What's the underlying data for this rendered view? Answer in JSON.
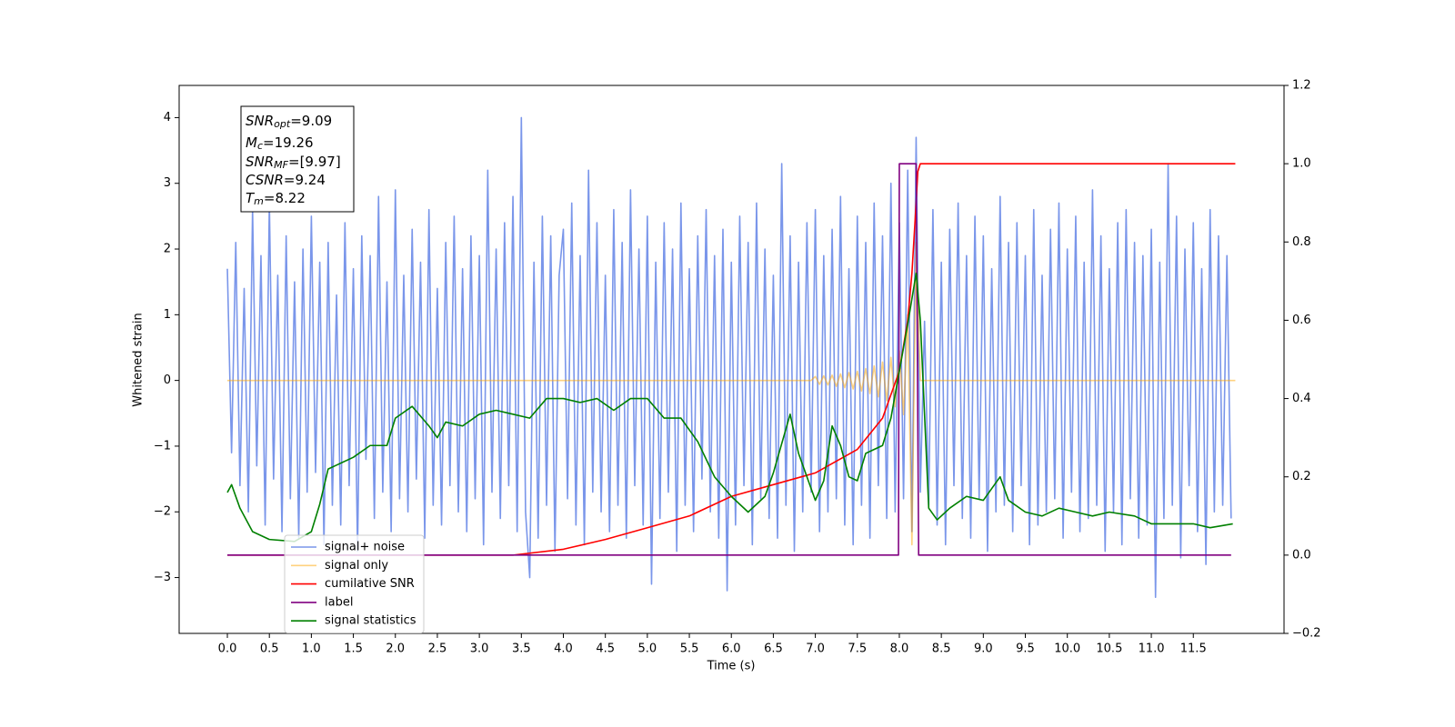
{
  "chart_data": {
    "type": "line",
    "x_label": "Time (s)",
    "y_label": "Whitened strain",
    "xlim": [
      -0.574,
      12.58
    ],
    "ylim": [
      -3.85,
      4.49
    ],
    "y2lim": [
      -0.2,
      1.2
    ],
    "xticks": [
      {
        "value": 0,
        "label": "0.0"
      },
      0.5,
      {
        "value": 1,
        "label": "1.0"
      },
      1.5,
      {
        "value": 2,
        "label": "2.0"
      },
      2.5,
      {
        "value": 3,
        "label": "3.0"
      },
      3.5,
      {
        "value": 4,
        "label": "4.0"
      },
      4.5,
      {
        "value": 5,
        "label": "5.0"
      },
      5.5,
      {
        "value": 6,
        "label": "6.0"
      },
      6.5,
      {
        "value": 7,
        "label": "7.0"
      },
      7.5,
      {
        "value": 8,
        "label": "8.0"
      },
      8.5,
      {
        "value": 9,
        "label": "9.0"
      },
      9.5,
      {
        "value": 10,
        "label": "10.0"
      },
      10.5,
      {
        "value": 11,
        "label": "11.0"
      },
      11.5
    ],
    "yticks": [
      {
        "value": -3,
        "label": "−3"
      },
      {
        "value": -2,
        "label": "−2"
      },
      {
        "value": -1,
        "label": "−1"
      },
      0,
      1,
      2,
      3,
      4
    ],
    "y2ticks": [
      {
        "value": -0.2,
        "label": "−0.2"
      },
      {
        "value": 0,
        "label": "0.0"
      },
      0.2,
      0.4,
      0.6,
      0.8,
      {
        "value": 1,
        "label": "1.0"
      },
      1.2
    ],
    "legend": "lower left",
    "annotation": [
      {
        "symbol": "SNR",
        "subscript": "opt",
        "text": "=9.09"
      },
      {
        "symbol": "M",
        "subscript": "c",
        "text": "=19.26"
      },
      {
        "symbol": "SNR",
        "subscript": "MF",
        "text": "=[9.97]"
      },
      {
        "symbol": "CSNR",
        "subscript": "",
        "text": "=9.24"
      },
      {
        "symbol": "T",
        "subscript": "m",
        "text": "=8.22"
      }
    ],
    "series": [
      {
        "name": "signal+ noise",
        "color": "#4169e1",
        "alpha": 0.7,
        "axis": "y",
        "x": [
          0,
          0.05,
          0.1,
          0.15,
          0.2,
          0.25,
          0.3,
          0.35,
          0.4,
          0.45,
          0.5,
          0.55,
          0.6,
          0.65,
          0.7,
          0.75,
          0.8,
          0.85,
          0.9,
          0.95,
          1,
          1.05,
          1.1,
          1.15,
          1.2,
          1.25,
          1.3,
          1.35,
          1.4,
          1.45,
          1.5,
          1.55,
          1.6,
          1.65,
          1.7,
          1.75,
          1.8,
          1.85,
          1.9,
          1.95,
          2,
          2.05,
          2.1,
          2.15,
          2.2,
          2.25,
          2.3,
          2.35,
          2.4,
          2.45,
          2.5,
          2.55,
          2.6,
          2.65,
          2.7,
          2.75,
          2.8,
          2.85,
          2.9,
          2.95,
          3,
          3.05,
          3.1,
          3.15,
          3.2,
          3.25,
          3.3,
          3.35,
          3.4,
          3.45,
          3.5,
          3.55,
          3.6,
          3.65,
          3.7,
          3.75,
          3.8,
          3.85,
          3.9,
          3.95,
          4,
          4.05,
          4.1,
          4.15,
          4.2,
          4.25,
          4.3,
          4.35,
          4.4,
          4.45,
          4.5,
          4.55,
          4.6,
          4.65,
          4.7,
          4.75,
          4.8,
          4.85,
          4.9,
          4.95,
          5,
          5.05,
          5.1,
          5.15,
          5.2,
          5.25,
          5.3,
          5.35,
          5.4,
          5.45,
          5.5,
          5.55,
          5.6,
          5.65,
          5.7,
          5.75,
          5.8,
          5.85,
          5.9,
          5.95,
          6,
          6.05,
          6.1,
          6.15,
          6.2,
          6.25,
          6.3,
          6.35,
          6.4,
          6.45,
          6.5,
          6.55,
          6.6,
          6.65,
          6.7,
          6.75,
          6.8,
          6.85,
          6.9,
          6.95,
          7,
          7.05,
          7.1,
          7.15,
          7.2,
          7.25,
          7.3,
          7.35,
          7.4,
          7.45,
          7.5,
          7.55,
          7.6,
          7.65,
          7.7,
          7.75,
          7.8,
          7.85,
          7.9,
          7.95,
          8,
          8.05,
          8.1,
          8.15,
          8.2,
          8.25,
          8.3,
          8.35,
          8.4,
          8.45,
          8.5,
          8.55,
          8.6,
          8.65,
          8.7,
          8.75,
          8.8,
          8.85,
          8.9,
          8.95,
          9,
          9.05,
          9.1,
          9.15,
          9.2,
          9.25,
          9.3,
          9.35,
          9.4,
          9.45,
          9.5,
          9.55,
          9.6,
          9.65,
          9.7,
          9.75,
          9.8,
          9.85,
          9.9,
          9.95,
          10,
          10.05,
          10.1,
          10.15,
          10.2,
          10.25,
          10.3,
          10.35,
          10.4,
          10.45,
          10.5,
          10.55,
          10.6,
          10.65,
          10.7,
          10.75,
          10.8,
          10.85,
          10.9,
          10.95,
          11,
          11.05,
          11.1,
          11.15,
          11.2,
          11.25,
          11.3,
          11.35,
          11.4,
          11.45,
          11.5,
          11.55,
          11.6,
          11.65,
          11.7,
          11.75,
          11.8,
          11.85,
          11.9,
          11.95
        ],
        "values": [
          1.7,
          -1.1,
          2.1,
          -1.6,
          1.4,
          -2.0,
          2.6,
          -1.3,
          1.9,
          -2.2,
          2.7,
          -1.5,
          1.6,
          -2.3,
          2.2,
          -1.8,
          1.5,
          -2.4,
          2.0,
          -1.7,
          2.5,
          -1.4,
          1.8,
          -2.5,
          2.1,
          -1.9,
          1.3,
          -2.2,
          2.4,
          -1.6,
          1.7,
          -2.6,
          2.2,
          -1.2,
          1.9,
          -2.1,
          2.8,
          -1.7,
          1.5,
          -2.3,
          2.9,
          -1.8,
          1.6,
          -2.0,
          2.3,
          -1.5,
          1.8,
          -2.4,
          2.6,
          -1.9,
          1.4,
          -2.2,
          2.1,
          -1.6,
          2.5,
          -2.0,
          1.7,
          -2.3,
          2.2,
          -1.8,
          1.9,
          -2.5,
          3.2,
          -1.7,
          2.0,
          -2.1,
          2.4,
          -1.6,
          2.8,
          -2.3,
          4.0,
          -2.0,
          -3.0,
          1.8,
          -2.4,
          2.5,
          -1.9,
          2.2,
          -2.6,
          1.6,
          2.3,
          -1.8,
          2.7,
          -2.2,
          1.9,
          -2.5,
          3.2,
          -1.7,
          2.4,
          -2.0,
          1.6,
          -2.3,
          2.6,
          -1.9,
          2.1,
          -2.4,
          2.9,
          -1.6,
          2.0,
          -2.2,
          2.5,
          -3.1,
          1.8,
          -2.1,
          2.4,
          -1.7,
          2.0,
          -2.6,
          2.7,
          -1.9,
          1.7,
          -2.3,
          2.2,
          -1.5,
          2.6,
          -2.0,
          1.9,
          -2.4,
          2.3,
          -3.2,
          1.8,
          -2.2,
          2.5,
          -1.6,
          2.1,
          -2.5,
          2.7,
          -1.8,
          2.0,
          -2.1,
          1.6,
          -2.4,
          3.3,
          -1.9,
          2.2,
          -2.6,
          1.8,
          -2.0,
          2.4,
          -1.7,
          2.6,
          -2.3,
          1.9,
          -2.0,
          2.3,
          -1.8,
          2.8,
          -2.2,
          1.7,
          -2.5,
          2.5,
          -1.9,
          2.1,
          -2.4,
          2.7,
          -1.6,
          2.2,
          -2.1,
          3.0,
          -2.0,
          2.4,
          -1.8,
          3.2,
          -2.3,
          3.7,
          -1.7,
          0.9,
          -1.9,
          2.6,
          -2.2,
          1.8,
          -2.5,
          2.3,
          -1.6,
          2.7,
          -2.1,
          1.9,
          -2.4,
          2.5,
          -1.8,
          2.2,
          -2.6,
          1.7,
          -2.0,
          2.8,
          -1.9,
          2.1,
          -2.3,
          2.4,
          -1.6,
          1.9,
          -2.5,
          2.6,
          -2.2,
          1.6,
          -2.0,
          2.3,
          -1.8,
          2.7,
          -2.4,
          2.0,
          -1.7,
          2.5,
          -2.3,
          1.8,
          -2.1,
          2.9,
          -1.9,
          2.2,
          -2.6,
          1.7,
          -2.0,
          2.4,
          -2.5,
          2.6,
          -1.8,
          2.1,
          -2.4,
          1.9,
          -2.2,
          2.3,
          -3.3,
          1.8,
          -2.1,
          3.3,
          -1.9,
          2.5,
          -2.7,
          2.0,
          -1.6,
          2.4,
          -2.3,
          1.7,
          -2.8,
          2.6,
          -2.0,
          2.2,
          -1.9,
          1.9,
          -2.1
        ]
      },
      {
        "name": "signal only",
        "color": "#ffa500",
        "alpha": 0.5,
        "axis": "y",
        "x": [
          0,
          6.95,
          7.0,
          7.05,
          7.1,
          7.15,
          7.2,
          7.25,
          7.3,
          7.35,
          7.4,
          7.45,
          7.5,
          7.55,
          7.6,
          7.65,
          7.7,
          7.75,
          7.8,
          7.85,
          7.9,
          7.95,
          8.0,
          8.05,
          8.1,
          8.15,
          8.2,
          8.25,
          12
        ],
        "values": [
          0,
          0,
          0.06,
          -0.06,
          0.07,
          -0.07,
          0.08,
          -0.09,
          0.1,
          -0.11,
          0.12,
          -0.13,
          0.14,
          -0.16,
          0.18,
          -0.2,
          0.22,
          -0.25,
          0.28,
          -0.31,
          0.35,
          -0.4,
          0.45,
          -0.52,
          1.0,
          -2.5,
          2.1,
          0,
          0
        ]
      },
      {
        "name": "cumilative SNR",
        "color": "#ff0000",
        "alpha": 1,
        "axis": "y2",
        "x": [
          0,
          3.4,
          4.0,
          4.5,
          5.0,
          5.5,
          6.0,
          6.5,
          7.0,
          7.5,
          7.8,
          8.0,
          8.1,
          8.15,
          8.2,
          8.22,
          8.25,
          12.0
        ],
        "values": [
          0,
          0,
          0.015,
          0.04,
          0.07,
          0.1,
          0.15,
          0.18,
          0.21,
          0.27,
          0.35,
          0.47,
          0.6,
          0.72,
          0.9,
          0.98,
          1.0,
          1.0
        ]
      },
      {
        "name": "label",
        "color": "#800080",
        "alpha": 1,
        "axis": "y2",
        "x": [
          0,
          7.99,
          8.0,
          8.2,
          8.23,
          11.95
        ],
        "values": [
          0,
          0,
          1,
          1,
          0,
          0
        ]
      },
      {
        "name": "signal statistics",
        "color": "#008000",
        "alpha": 1,
        "axis": "y2",
        "x": [
          0,
          0.05,
          0.15,
          0.3,
          0.5,
          0.8,
          1.0,
          1.1,
          1.2,
          1.3,
          1.5,
          1.7,
          1.9,
          2.0,
          2.2,
          2.4,
          2.5,
          2.6,
          2.8,
          3.0,
          3.2,
          3.4,
          3.6,
          3.8,
          4.0,
          4.2,
          4.4,
          4.6,
          4.8,
          5.0,
          5.2,
          5.4,
          5.6,
          5.8,
          6.0,
          6.2,
          6.4,
          6.5,
          6.7,
          6.8,
          7.0,
          7.1,
          7.2,
          7.3,
          7.4,
          7.5,
          7.6,
          7.8,
          7.9,
          8.0,
          8.1,
          8.2,
          8.25,
          8.35,
          8.45,
          8.6,
          8.8,
          9.0,
          9.2,
          9.3,
          9.5,
          9.7,
          9.9,
          10.1,
          10.3,
          10.5,
          10.8,
          11.0,
          11.2,
          11.5,
          11.7,
          11.97
        ],
        "values": [
          0.16,
          0.18,
          0.12,
          0.06,
          0.04,
          0.035,
          0.06,
          0.13,
          0.22,
          0.23,
          0.25,
          0.28,
          0.28,
          0.35,
          0.38,
          0.33,
          0.3,
          0.34,
          0.33,
          0.36,
          0.37,
          0.36,
          0.35,
          0.4,
          0.4,
          0.39,
          0.4,
          0.37,
          0.4,
          0.4,
          0.35,
          0.35,
          0.29,
          0.2,
          0.15,
          0.11,
          0.15,
          0.21,
          0.36,
          0.26,
          0.14,
          0.19,
          0.33,
          0.28,
          0.2,
          0.19,
          0.26,
          0.28,
          0.35,
          0.47,
          0.59,
          0.72,
          0.6,
          0.12,
          0.09,
          0.12,
          0.15,
          0.14,
          0.2,
          0.14,
          0.11,
          0.1,
          0.12,
          0.11,
          0.1,
          0.11,
          0.1,
          0.08,
          0.08,
          0.08,
          0.07,
          0.08
        ]
      }
    ]
  }
}
